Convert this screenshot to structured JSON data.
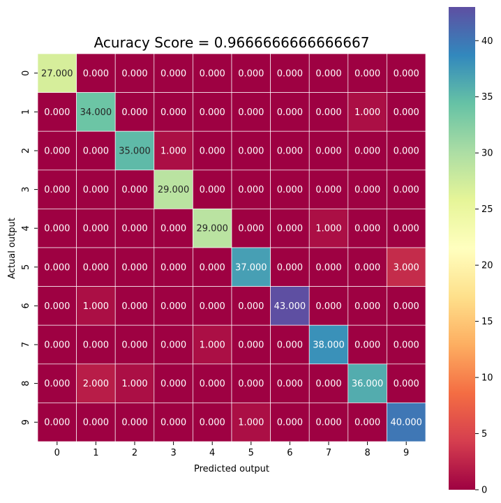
{
  "chart_data": {
    "type": "heatmap",
    "title": "Acuracy Score = 0.9666666666666667",
    "xlabel": "Predicted output",
    "ylabel": "Actual output",
    "x_categories": [
      "0",
      "1",
      "2",
      "3",
      "4",
      "5",
      "6",
      "7",
      "8",
      "9"
    ],
    "y_categories": [
      "0",
      "1",
      "2",
      "3",
      "4",
      "5",
      "6",
      "7",
      "8",
      "9"
    ],
    "values": [
      [
        27,
        0,
        0,
        0,
        0,
        0,
        0,
        0,
        0,
        0
      ],
      [
        0,
        34,
        0,
        0,
        0,
        0,
        0,
        0,
        1,
        0
      ],
      [
        0,
        0,
        35,
        1,
        0,
        0,
        0,
        0,
        0,
        0
      ],
      [
        0,
        0,
        0,
        29,
        0,
        0,
        0,
        0,
        0,
        0
      ],
      [
        0,
        0,
        0,
        0,
        29,
        0,
        0,
        1,
        0,
        0
      ],
      [
        0,
        0,
        0,
        0,
        0,
        37,
        0,
        0,
        0,
        3
      ],
      [
        0,
        1,
        0,
        0,
        0,
        0,
        43,
        0,
        0,
        0
      ],
      [
        0,
        0,
        0,
        0,
        1,
        0,
        0,
        38,
        0,
        0
      ],
      [
        0,
        2,
        1,
        0,
        0,
        0,
        0,
        0,
        36,
        0
      ],
      [
        0,
        0,
        0,
        0,
        0,
        1,
        0,
        0,
        0,
        40
      ]
    ],
    "value_format": "0.000",
    "colormap": "Spectral",
    "vmin": 0,
    "vmax": 43,
    "colorbar_ticks": [
      0,
      5,
      10,
      15,
      20,
      25,
      30,
      35,
      40
    ],
    "grid_line_color": "#ffffff"
  }
}
